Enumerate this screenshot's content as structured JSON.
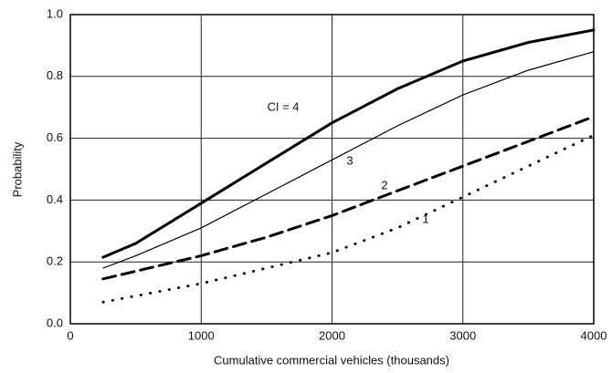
{
  "chart_data": {
    "type": "line",
    "xlabel": "Cumulative commercial vehicles (thousands)",
    "ylabel": "Probability",
    "x": [
      250,
      500,
      1000,
      1500,
      2000,
      2500,
      3000,
      3500,
      4000
    ],
    "series": [
      {
        "name": "CI = 4",
        "color": "#000000",
        "line_style": "solid",
        "width": 3,
        "values": [
          0.215,
          0.26,
          0.39,
          0.52,
          0.65,
          0.76,
          0.85,
          0.91,
          0.95
        ]
      },
      {
        "name": "3",
        "color": "#000000",
        "line_style": "solid",
        "width": 1.2,
        "values": [
          0.18,
          0.22,
          0.31,
          0.42,
          0.53,
          0.64,
          0.74,
          0.82,
          0.88
        ]
      },
      {
        "name": "2",
        "color": "#000000",
        "line_style": "dashed",
        "width": 3,
        "values": [
          0.145,
          0.17,
          0.22,
          0.28,
          0.35,
          0.43,
          0.51,
          0.59,
          0.67
        ]
      },
      {
        "name": "1",
        "color": "#000000",
        "line_style": "dotted",
        "width": 2.8,
        "values": [
          0.07,
          0.09,
          0.13,
          0.18,
          0.23,
          0.31,
          0.41,
          0.51,
          0.61
        ]
      }
    ],
    "xlim": [
      0,
      4000
    ],
    "xticks": [
      0,
      1000,
      2000,
      3000,
      4000
    ],
    "ylim": [
      0,
      1
    ],
    "yticks": [
      {
        "value": 0,
        "label": "0.0"
      },
      0.2,
      0.4,
      0.6,
      0.8,
      {
        "value": 1,
        "label": "1.0"
      }
    ],
    "grid": true
  }
}
